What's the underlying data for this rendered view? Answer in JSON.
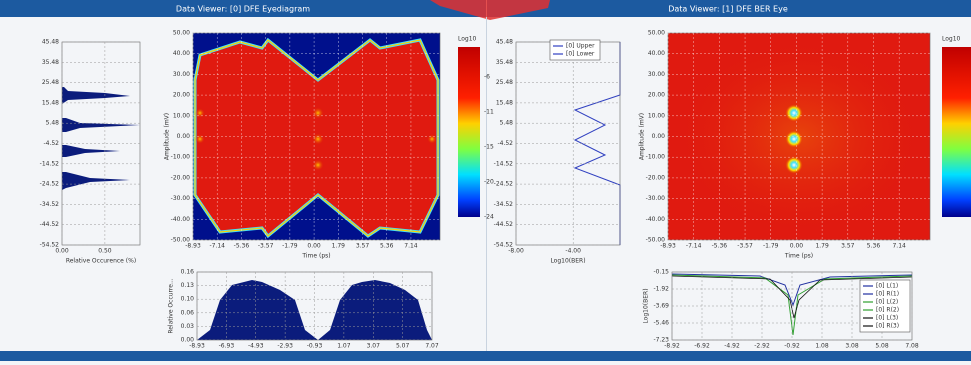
{
  "panels": [
    {
      "title": "Data Viewer: [0] DFE Eyediagram",
      "histogram": {
        "yticks": [
          "45.48",
          "35.48",
          "25.48",
          "15.48",
          "5.48",
          "-4.52",
          "-14.52",
          "-24.52",
          "-34.52",
          "-44.52",
          "-54.52"
        ],
        "xticks": [
          "0.00",
          "0.50"
        ],
        "xlabel": "Relative Occurence (%)"
      },
      "heatmap": {
        "ylabel": "Amplitude (mV)",
        "xlabel": "Time (ps)",
        "yticks": [
          "50.00",
          "40.00",
          "30.00",
          "20.00",
          "10.00",
          "0.00",
          "-10.00",
          "-20.00",
          "-30.00",
          "-40.00",
          "-50.00"
        ],
        "xticks": [
          "-8.93",
          "-7.14",
          "-5.36",
          "-3.57",
          "-1.79",
          "0.00",
          "1.79",
          "3.57",
          "5.36",
          "7.14"
        ],
        "colorbar": {
          "title": "Log10",
          "ticks": [
            "-6",
            "-11",
            "-15",
            "-20",
            "-24"
          ]
        }
      },
      "bottom": {
        "ylabel": "Relative Occurre...",
        "yticks": [
          "0.16",
          "0.13",
          "0.10",
          "0.06",
          "0.03",
          "0.00"
        ],
        "xticks": [
          "-8.93",
          "-6.93",
          "-4.93",
          "-2.93",
          "-0.93",
          "1.07",
          "3.07",
          "5.07",
          "7.07"
        ]
      }
    },
    {
      "title": "Data Viewer: [1] DFE BER Eye",
      "histogram": {
        "yticks": [
          "45.48",
          "35.48",
          "25.48",
          "15.48",
          "5.48",
          "-4.52",
          "-14.52",
          "-24.52",
          "-34.52",
          "-44.52",
          "-54.52"
        ],
        "xticks": [
          "-8.00",
          "-4.00"
        ],
        "xlabel": "Log10(BER)",
        "legend": [
          "[0] Upper",
          "[0] Lower"
        ]
      },
      "heatmap": {
        "ylabel": "Amplitude (mV)",
        "xlabel": "Time (ps)",
        "yticks": [
          "50.00",
          "40.00",
          "30.00",
          "20.00",
          "10.00",
          "0.00",
          "-10.00",
          "-20.00",
          "-30.00",
          "-40.00",
          "-50.00"
        ],
        "xticks": [
          "-8.93",
          "-7.14",
          "-5.36",
          "-3.57",
          "-1.79",
          "0.00",
          "1.79",
          "3.57",
          "5.36",
          "7.14"
        ],
        "colorbar": {
          "title": "Log10"
        }
      },
      "bottom": {
        "ylabel": "Log10(BER)",
        "yticks": [
          "-0.15",
          "-1.92",
          "-3.69",
          "-5.46",
          "-7.23"
        ],
        "xticks": [
          "-8.92",
          "-6.92",
          "-4.92",
          "-2.92",
          "-0.92",
          "1.08",
          "3.08",
          "5.08",
          "7.08"
        ],
        "legend": [
          "[0] L(1)",
          "[0] R(1)",
          "[0] L(2)",
          "[0] R(2)",
          "[0] L(3)",
          "[0] R(3)"
        ]
      }
    }
  ]
}
